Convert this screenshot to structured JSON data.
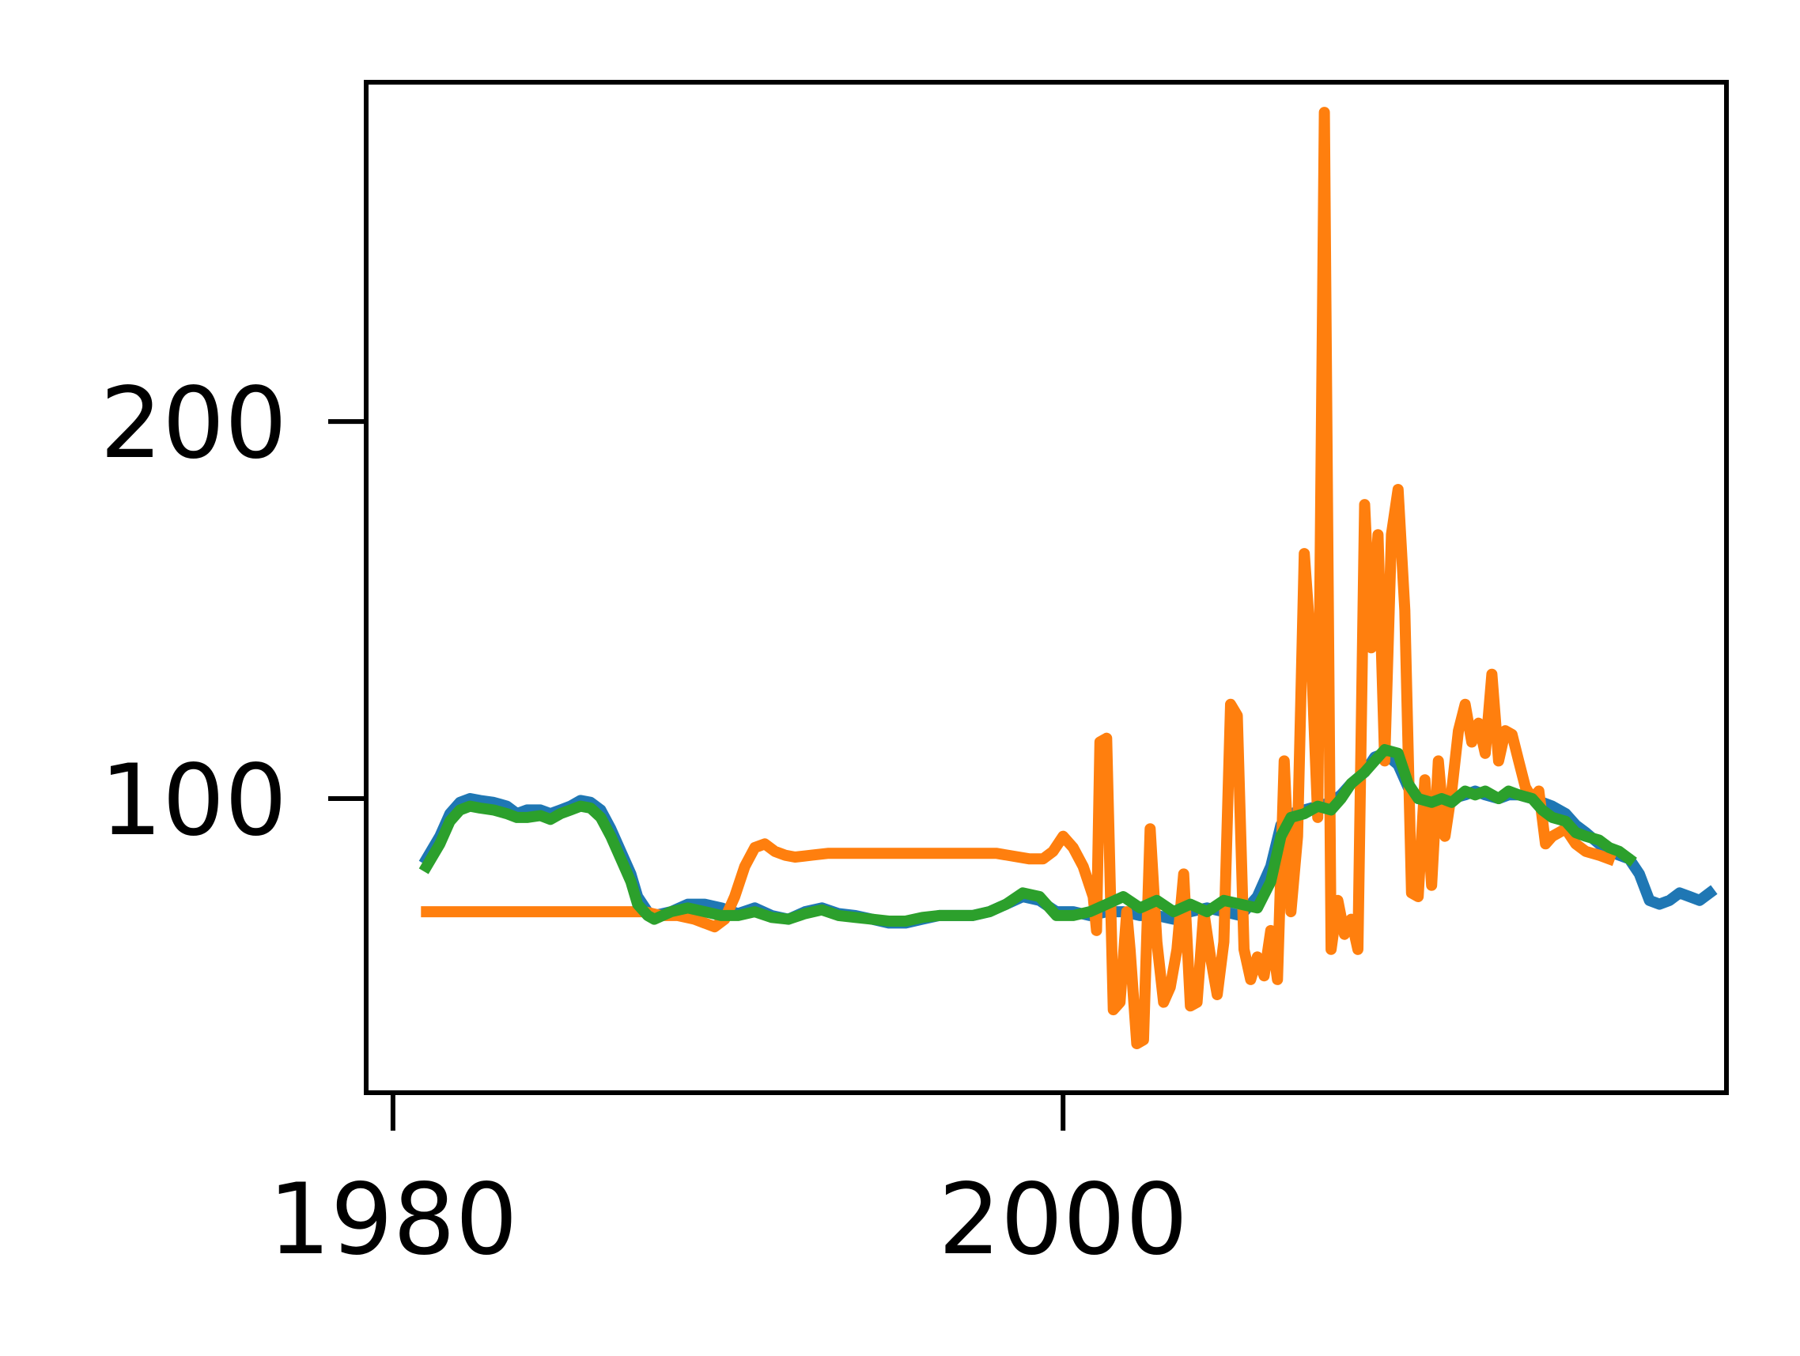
{
  "chart_data": {
    "type": "line",
    "title": "",
    "xlabel": "",
    "ylabel": "",
    "xlim": [
      1979.2,
      2019.8
    ],
    "ylim": [
      22,
      290
    ],
    "x_ticks": [
      {
        "value": 1980,
        "label": "1980"
      },
      {
        "value": 2000,
        "label": "2000"
      }
    ],
    "y_ticks": [
      {
        "value": 100,
        "label": "100"
      },
      {
        "value": 200,
        "label": "200"
      }
    ],
    "grid": false,
    "legend": "none",
    "series": [
      {
        "color": "#1f77b4",
        "points": [
          [
            1981.0,
            84
          ],
          [
            1981.4,
            90
          ],
          [
            1981.7,
            96
          ],
          [
            1982.0,
            99
          ],
          [
            1982.3,
            100
          ],
          [
            1982.6,
            99.5
          ],
          [
            1983.0,
            99
          ],
          [
            1983.4,
            98
          ],
          [
            1983.7,
            96
          ],
          [
            1984.0,
            97
          ],
          [
            1984.4,
            97
          ],
          [
            1984.7,
            96
          ],
          [
            1985.0,
            97
          ],
          [
            1985.3,
            98
          ],
          [
            1985.6,
            99.5
          ],
          [
            1985.9,
            99
          ],
          [
            1986.2,
            97
          ],
          [
            1986.5,
            92
          ],
          [
            1986.8,
            86
          ],
          [
            1987.1,
            80
          ],
          [
            1987.3,
            74
          ],
          [
            1987.6,
            70
          ],
          [
            1987.8,
            69
          ],
          [
            1988.3,
            70
          ],
          [
            1988.8,
            72
          ],
          [
            1989.3,
            72
          ],
          [
            1989.8,
            71
          ],
          [
            1990.3,
            69.5
          ],
          [
            1990.8,
            71
          ],
          [
            1991.3,
            69
          ],
          [
            1991.8,
            68
          ],
          [
            1992.3,
            70
          ],
          [
            1992.8,
            71
          ],
          [
            1993.3,
            69.5
          ],
          [
            1993.8,
            69
          ],
          [
            1994.3,
            68
          ],
          [
            1994.8,
            67
          ],
          [
            1995.3,
            67
          ],
          [
            1995.8,
            68
          ],
          [
            1996.3,
            69
          ],
          [
            1996.8,
            69
          ],
          [
            1997.3,
            69
          ],
          [
            1997.8,
            70
          ],
          [
            1998.3,
            72
          ],
          [
            1998.8,
            74
          ],
          [
            1999.3,
            73
          ],
          [
            1999.8,
            70
          ],
          [
            2000.3,
            70
          ],
          [
            2000.8,
            69
          ],
          [
            2001.3,
            70
          ],
          [
            2001.8,
            70
          ],
          [
            2002.3,
            69
          ],
          [
            2002.8,
            69
          ],
          [
            2003.3,
            68
          ],
          [
            2003.8,
            70
          ],
          [
            2004.3,
            71
          ],
          [
            2004.8,
            70
          ],
          [
            2005.3,
            69
          ],
          [
            2005.8,
            74
          ],
          [
            2006.2,
            82
          ],
          [
            2006.5,
            93
          ],
          [
            2006.8,
            96
          ],
          [
            2007.2,
            97
          ],
          [
            2007.6,
            98
          ],
          [
            2008.0,
            99
          ],
          [
            2008.3,
            101
          ],
          [
            2008.6,
            104
          ],
          [
            2009.0,
            107
          ],
          [
            2009.3,
            111
          ],
          [
            2009.6,
            112
          ],
          [
            2010.0,
            109
          ],
          [
            2010.3,
            103
          ],
          [
            2010.6,
            100
          ],
          [
            2011.0,
            100
          ],
          [
            2011.3,
            101
          ],
          [
            2011.6,
            100
          ],
          [
            2012.0,
            101
          ],
          [
            2012.3,
            102
          ],
          [
            2012.6,
            101
          ],
          [
            2013.0,
            100
          ],
          [
            2013.3,
            101
          ],
          [
            2013.6,
            101
          ],
          [
            2014.0,
            100
          ],
          [
            2014.3,
            99
          ],
          [
            2014.6,
            98
          ],
          [
            2015.0,
            96
          ],
          [
            2015.3,
            93
          ],
          [
            2015.6,
            91
          ],
          [
            2016.0,
            88
          ],
          [
            2016.3,
            86
          ],
          [
            2016.6,
            85
          ],
          [
            2016.9,
            84
          ],
          [
            2017.2,
            80
          ],
          [
            2017.5,
            73
          ],
          [
            2017.8,
            72
          ],
          [
            2018.1,
            73
          ],
          [
            2018.4,
            75
          ],
          [
            2018.7,
            74
          ],
          [
            2019.0,
            73
          ],
          [
            2019.3,
            75
          ]
        ]
      },
      {
        "color": "#ff7f0e",
        "points": [
          [
            1981.0,
            70
          ],
          [
            1982.0,
            70
          ],
          [
            1983.0,
            70
          ],
          [
            1984.0,
            70
          ],
          [
            1985.0,
            70
          ],
          [
            1986.0,
            70
          ],
          [
            1987.0,
            70
          ],
          [
            1987.5,
            70
          ],
          [
            1988.0,
            69
          ],
          [
            1988.5,
            69
          ],
          [
            1989.0,
            68
          ],
          [
            1989.3,
            67
          ],
          [
            1989.6,
            66
          ],
          [
            1989.9,
            68
          ],
          [
            1990.2,
            74
          ],
          [
            1990.5,
            82
          ],
          [
            1990.8,
            87
          ],
          [
            1991.1,
            88
          ],
          [
            1991.4,
            86
          ],
          [
            1991.7,
            85
          ],
          [
            1992.0,
            84.5
          ],
          [
            1992.5,
            85
          ],
          [
            1993.0,
            85.5
          ],
          [
            1994.0,
            85.5
          ],
          [
            1995.0,
            85.5
          ],
          [
            1996.0,
            85.5
          ],
          [
            1997.0,
            85.5
          ],
          [
            1998.0,
            85.5
          ],
          [
            1999.0,
            84
          ],
          [
            1999.4,
            84
          ],
          [
            1999.7,
            86
          ],
          [
            2000.0,
            90
          ],
          [
            2000.3,
            87
          ],
          [
            2000.6,
            82
          ],
          [
            2000.9,
            74
          ],
          [
            2001.0,
            65
          ],
          [
            2001.1,
            115
          ],
          [
            2001.3,
            116
          ],
          [
            2001.5,
            44
          ],
          [
            2001.7,
            46
          ],
          [
            2001.9,
            70
          ],
          [
            2002.0,
            60
          ],
          [
            2002.2,
            35
          ],
          [
            2002.4,
            36
          ],
          [
            2002.6,
            92
          ],
          [
            2002.8,
            62
          ],
          [
            2003.0,
            46
          ],
          [
            2003.2,
            50
          ],
          [
            2003.4,
            60
          ],
          [
            2003.6,
            80
          ],
          [
            2003.8,
            45
          ],
          [
            2004.0,
            46
          ],
          [
            2004.2,
            70
          ],
          [
            2004.4,
            58
          ],
          [
            2004.6,
            48
          ],
          [
            2004.8,
            62
          ],
          [
            2005.0,
            125
          ],
          [
            2005.2,
            122
          ],
          [
            2005.4,
            60
          ],
          [
            2005.6,
            52
          ],
          [
            2005.8,
            58
          ],
          [
            2006.0,
            53
          ],
          [
            2006.2,
            65
          ],
          [
            2006.4,
            52
          ],
          [
            2006.6,
            110
          ],
          [
            2006.8,
            70
          ],
          [
            2007.0,
            90
          ],
          [
            2007.2,
            165
          ],
          [
            2007.4,
            140
          ],
          [
            2007.6,
            95
          ],
          [
            2007.8,
            282
          ],
          [
            2008.0,
            60
          ],
          [
            2008.2,
            73
          ],
          [
            2008.4,
            64
          ],
          [
            2008.6,
            68
          ],
          [
            2008.8,
            60
          ],
          [
            2009.0,
            178
          ],
          [
            2009.2,
            140
          ],
          [
            2009.4,
            170
          ],
          [
            2009.6,
            110
          ],
          [
            2009.8,
            170
          ],
          [
            2010.0,
            182
          ],
          [
            2010.2,
            150
          ],
          [
            2010.4,
            75
          ],
          [
            2010.6,
            74
          ],
          [
            2010.8,
            105
          ],
          [
            2011.0,
            77
          ],
          [
            2011.2,
            110
          ],
          [
            2011.4,
            90
          ],
          [
            2011.6,
            102
          ],
          [
            2011.8,
            118
          ],
          [
            2012.0,
            125
          ],
          [
            2012.2,
            115
          ],
          [
            2012.4,
            120
          ],
          [
            2012.6,
            112
          ],
          [
            2012.8,
            133
          ],
          [
            2013.0,
            110
          ],
          [
            2013.2,
            118
          ],
          [
            2013.4,
            117
          ],
          [
            2013.6,
            110
          ],
          [
            2013.8,
            103
          ],
          [
            2014.0,
            100
          ],
          [
            2014.2,
            102
          ],
          [
            2014.4,
            88
          ],
          [
            2014.6,
            90
          ],
          [
            2014.8,
            91
          ],
          [
            2015.0,
            92
          ],
          [
            2015.3,
            88
          ],
          [
            2015.6,
            86
          ],
          [
            2016.0,
            85
          ],
          [
            2016.3,
            84
          ]
        ]
      },
      {
        "color": "#2ca02c",
        "points": [
          [
            1981.0,
            82
          ],
          [
            1981.4,
            88
          ],
          [
            1981.7,
            94
          ],
          [
            1982.0,
            97
          ],
          [
            1982.3,
            98
          ],
          [
            1982.6,
            97.5
          ],
          [
            1983.0,
            97
          ],
          [
            1983.4,
            96
          ],
          [
            1983.7,
            95
          ],
          [
            1984.0,
            95
          ],
          [
            1984.4,
            95.5
          ],
          [
            1984.7,
            94.5
          ],
          [
            1985.0,
            96
          ],
          [
            1985.3,
            97
          ],
          [
            1985.6,
            98
          ],
          [
            1985.9,
            97.5
          ],
          [
            1986.2,
            95
          ],
          [
            1986.5,
            90
          ],
          [
            1986.8,
            84
          ],
          [
            1987.1,
            78
          ],
          [
            1987.3,
            72
          ],
          [
            1987.6,
            69
          ],
          [
            1987.8,
            68
          ],
          [
            1988.3,
            70
          ],
          [
            1988.8,
            71
          ],
          [
            1989.3,
            70
          ],
          [
            1989.8,
            69
          ],
          [
            1990.3,
            69
          ],
          [
            1990.8,
            70
          ],
          [
            1991.3,
            68.5
          ],
          [
            1991.8,
            68
          ],
          [
            1992.3,
            69.5
          ],
          [
            1992.8,
            70.5
          ],
          [
            1993.3,
            69
          ],
          [
            1993.8,
            68.5
          ],
          [
            1994.3,
            68
          ],
          [
            1994.8,
            67.5
          ],
          [
            1995.3,
            67.5
          ],
          [
            1995.8,
            68.5
          ],
          [
            1996.3,
            69
          ],
          [
            1996.8,
            69
          ],
          [
            1997.3,
            69
          ],
          [
            1997.8,
            70
          ],
          [
            1998.3,
            72
          ],
          [
            1998.8,
            75
          ],
          [
            1999.3,
            74
          ],
          [
            1999.8,
            69
          ],
          [
            2000.3,
            69
          ],
          [
            2000.8,
            70
          ],
          [
            2001.3,
            72
          ],
          [
            2001.8,
            74
          ],
          [
            2002.3,
            71
          ],
          [
            2002.8,
            73
          ],
          [
            2003.3,
            70
          ],
          [
            2003.8,
            72
          ],
          [
            2004.3,
            70
          ],
          [
            2004.8,
            73
          ],
          [
            2005.3,
            72
          ],
          [
            2005.8,
            71
          ],
          [
            2006.2,
            78
          ],
          [
            2006.5,
            90
          ],
          [
            2006.8,
            95
          ],
          [
            2007.2,
            96
          ],
          [
            2007.6,
            98
          ],
          [
            2008.0,
            97
          ],
          [
            2008.3,
            100
          ],
          [
            2008.6,
            104
          ],
          [
            2009.0,
            107
          ],
          [
            2009.3,
            110
          ],
          [
            2009.6,
            113
          ],
          [
            2010.0,
            112
          ],
          [
            2010.3,
            104
          ],
          [
            2010.6,
            100
          ],
          [
            2011.0,
            99
          ],
          [
            2011.3,
            100
          ],
          [
            2011.6,
            99
          ],
          [
            2012.0,
            102
          ],
          [
            2012.3,
            101
          ],
          [
            2012.6,
            102
          ],
          [
            2013.0,
            100
          ],
          [
            2013.3,
            102
          ],
          [
            2013.6,
            101
          ],
          [
            2014.0,
            100
          ],
          [
            2014.3,
            97
          ],
          [
            2014.6,
            95
          ],
          [
            2015.0,
            94
          ],
          [
            2015.3,
            91
          ],
          [
            2015.6,
            90
          ],
          [
            2016.0,
            89
          ],
          [
            2016.3,
            87
          ],
          [
            2016.6,
            86
          ],
          [
            2016.9,
            84
          ]
        ]
      }
    ]
  }
}
